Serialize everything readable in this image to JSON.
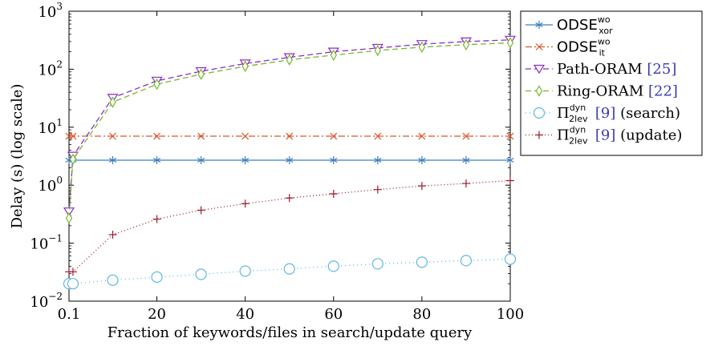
{
  "chart_data": {
    "type": "line",
    "xlabel": "Fraction of keywords/files in search/update query",
    "ylabel": "Delay (s) (log scale)",
    "yscale": "log",
    "xlim": [
      0.1,
      100
    ],
    "ylim": [
      0.01,
      1000
    ],
    "x_ticks": [
      "0.1",
      "20",
      "40",
      "60",
      "80",
      "100"
    ],
    "y_ticks": [
      {
        "base": "10",
        "exp": "3"
      },
      {
        "base": "10",
        "exp": "2"
      },
      {
        "base": "10",
        "exp": "1"
      },
      {
        "base": "10",
        "exp": "0"
      },
      {
        "base": "10",
        "exp": "−1"
      },
      {
        "base": "10",
        "exp": "−2"
      }
    ],
    "x": [
      0.1,
      1,
      10,
      20,
      30,
      40,
      50,
      60,
      70,
      80,
      90,
      100
    ],
    "series": [
      {
        "name": "ODSE",
        "sup": "wo",
        "sub": "xor",
        "color": "#3c7fc1",
        "dash": "",
        "marker": "asterisk",
        "values": [
          2.7,
          2.7,
          2.7,
          2.7,
          2.7,
          2.7,
          2.7,
          2.7,
          2.7,
          2.7,
          2.7,
          2.7
        ]
      },
      {
        "name": "ODSE",
        "sup": "wo",
        "sub": "it",
        "color": "#d9572b",
        "dash": "8 3 2 3",
        "marker": "x",
        "values": [
          7,
          7,
          7,
          7,
          7,
          7,
          7,
          7,
          7,
          7,
          7,
          7
        ]
      },
      {
        "name": "Path-ORAM",
        "cite": "[25]",
        "color": "#8a2fc4",
        "dash": "7 4",
        "marker": "triangle-down",
        "values": [
          0.35,
          3.2,
          32,
          63,
          92,
          125,
          160,
          200,
          232,
          270,
          300,
          320
        ]
      },
      {
        "name": "Ring-ORAM",
        "cite": "[22]",
        "color": "#76b82a",
        "dash": "7 4",
        "marker": "diamond",
        "values": [
          0.27,
          2.8,
          27,
          55,
          82,
          112,
          145,
          175,
          210,
          240,
          265,
          285
        ]
      },
      {
        "name": "Π",
        "sup": "dyn",
        "sub": "2lev",
        "cite": "[9]",
        "suffix": "(search)",
        "color": "#5eb7e0",
        "dash": "1 4",
        "marker": "circle",
        "values": [
          0.02,
          0.02,
          0.023,
          0.026,
          0.029,
          0.033,
          0.036,
          0.04,
          0.044,
          0.047,
          0.05,
          0.053
        ]
      },
      {
        "name": "Π",
        "sup": "dyn",
        "sub": "2lev",
        "cite": "[9]",
        "suffix": "(update)",
        "color": "#9b1b30",
        "dash": "1 3",
        "marker": "plus",
        "values": [
          0.032,
          0.032,
          0.14,
          0.26,
          0.37,
          0.48,
          0.6,
          0.71,
          0.84,
          0.97,
          1.07,
          1.2
        ]
      }
    ],
    "legend_position": "right",
    "grid": false
  },
  "colors": {
    "cite": "#3b3bb3",
    "axis": "#000000"
  }
}
